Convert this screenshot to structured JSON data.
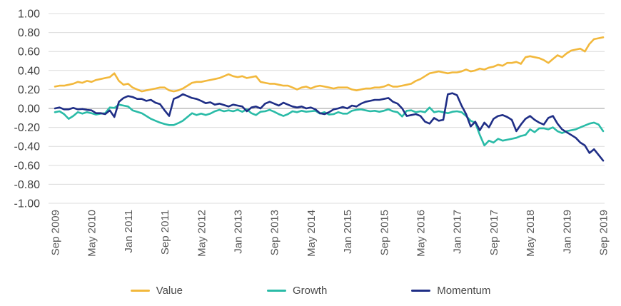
{
  "chart_data": {
    "type": "line",
    "title": "",
    "xlabel": "",
    "ylabel": "",
    "x_start": "Sep 2009",
    "x_end": "Sep 2019",
    "x_frequency": "monthly",
    "x_tick_labels": [
      "Sep 2009",
      "May 2010",
      "Jan 2011",
      "Sep 2011",
      "May 2012",
      "Jan 2013",
      "Sep 2013",
      "May 2014",
      "Jan 2015",
      "Sep 2015",
      "May 2016",
      "Jan 2017",
      "Sep 2017",
      "May 2018",
      "Jan 2019",
      "Sep 2019"
    ],
    "x_tick_interval_months": 8,
    "y_tick_labels": [
      "1.00",
      "0.80",
      "0.60",
      "0.40",
      "0.20",
      "0.00",
      "-0.20",
      "-0.40",
      "-0.60",
      "-0.80",
      "-1.00"
    ],
    "ylim": [
      -1.0,
      1.0
    ],
    "grid": "horizontal",
    "legend_position": "bottom",
    "series": [
      {
        "name": "Value",
        "color": "#F2B83C",
        "values": [
          0.23,
          0.24,
          0.24,
          0.25,
          0.26,
          0.28,
          0.27,
          0.29,
          0.28,
          0.3,
          0.31,
          0.32,
          0.33,
          0.37,
          0.29,
          0.25,
          0.26,
          0.22,
          0.2,
          0.18,
          0.19,
          0.2,
          0.21,
          0.22,
          0.22,
          0.19,
          0.18,
          0.19,
          0.21,
          0.24,
          0.27,
          0.28,
          0.28,
          0.29,
          0.3,
          0.31,
          0.32,
          0.34,
          0.36,
          0.34,
          0.33,
          0.34,
          0.32,
          0.33,
          0.34,
          0.28,
          0.27,
          0.26,
          0.26,
          0.25,
          0.24,
          0.24,
          0.22,
          0.2,
          0.22,
          0.23,
          0.21,
          0.23,
          0.24,
          0.23,
          0.22,
          0.21,
          0.22,
          0.22,
          0.22,
          0.2,
          0.19,
          0.2,
          0.21,
          0.21,
          0.22,
          0.22,
          0.23,
          0.25,
          0.23,
          0.23,
          0.24,
          0.25,
          0.26,
          0.29,
          0.31,
          0.34,
          0.37,
          0.38,
          0.39,
          0.38,
          0.37,
          0.38,
          0.38,
          0.39,
          0.41,
          0.39,
          0.4,
          0.42,
          0.41,
          0.43,
          0.44,
          0.46,
          0.45,
          0.48,
          0.48,
          0.49,
          0.47,
          0.54,
          0.55,
          0.54,
          0.53,
          0.51,
          0.48,
          0.52,
          0.56,
          0.54,
          0.58,
          0.61,
          0.62,
          0.63,
          0.6,
          0.68,
          0.73,
          0.74,
          0.75
        ]
      },
      {
        "name": "Growth",
        "color": "#2ABBA7",
        "values": [
          -0.04,
          -0.03,
          -0.06,
          -0.11,
          -0.08,
          -0.04,
          -0.055,
          -0.04,
          -0.05,
          -0.065,
          -0.055,
          -0.05,
          0.01,
          0.005,
          0.04,
          0.03,
          0.02,
          -0.02,
          -0.035,
          -0.05,
          -0.08,
          -0.11,
          -0.13,
          -0.15,
          -0.165,
          -0.175,
          -0.175,
          -0.155,
          -0.13,
          -0.09,
          -0.05,
          -0.07,
          -0.055,
          -0.07,
          -0.055,
          -0.03,
          -0.015,
          -0.03,
          -0.02,
          -0.03,
          -0.015,
          -0.035,
          -0.01,
          -0.05,
          -0.07,
          -0.035,
          -0.03,
          -0.015,
          -0.035,
          -0.06,
          -0.08,
          -0.06,
          -0.03,
          -0.04,
          -0.025,
          -0.035,
          -0.03,
          -0.025,
          -0.055,
          -0.04,
          -0.065,
          -0.06,
          -0.04,
          -0.055,
          -0.055,
          -0.025,
          -0.015,
          -0.01,
          -0.02,
          -0.03,
          -0.025,
          -0.035,
          -0.025,
          -0.01,
          -0.03,
          -0.04,
          -0.085,
          -0.025,
          -0.02,
          -0.04,
          -0.03,
          -0.04,
          0.01,
          -0.04,
          -0.03,
          -0.04,
          -0.05,
          -0.035,
          -0.03,
          -0.04,
          -0.08,
          -0.13,
          -0.15,
          -0.28,
          -0.39,
          -0.34,
          -0.36,
          -0.32,
          -0.34,
          -0.33,
          -0.32,
          -0.31,
          -0.29,
          -0.28,
          -0.22,
          -0.25,
          -0.21,
          -0.21,
          -0.22,
          -0.2,
          -0.24,
          -0.26,
          -0.24,
          -0.23,
          -0.22,
          -0.2,
          -0.18,
          -0.16,
          -0.15,
          -0.17,
          -0.24
        ]
      },
      {
        "name": "Momentum",
        "color": "#1F2E86",
        "values": [
          0.0,
          0.01,
          -0.01,
          -0.01,
          0.005,
          -0.01,
          -0.005,
          -0.015,
          -0.02,
          -0.05,
          -0.05,
          -0.06,
          -0.02,
          -0.09,
          0.07,
          0.11,
          0.13,
          0.12,
          0.1,
          0.1,
          0.08,
          0.09,
          0.06,
          0.045,
          -0.02,
          -0.08,
          0.1,
          0.12,
          0.15,
          0.13,
          0.11,
          0.1,
          0.08,
          0.055,
          0.065,
          0.04,
          0.05,
          0.035,
          0.02,
          0.04,
          0.03,
          0.02,
          -0.03,
          0.01,
          0.02,
          0.0,
          0.05,
          0.07,
          0.05,
          0.03,
          0.06,
          0.04,
          0.02,
          0.01,
          0.02,
          0.0,
          0.01,
          -0.01,
          -0.05,
          -0.06,
          -0.04,
          -0.01,
          0.0,
          0.015,
          0.0,
          0.03,
          0.02,
          0.05,
          0.07,
          0.08,
          0.09,
          0.09,
          0.1,
          0.11,
          0.07,
          0.05,
          0.0,
          -0.08,
          -0.07,
          -0.06,
          -0.08,
          -0.14,
          -0.16,
          -0.1,
          -0.13,
          -0.12,
          0.15,
          0.16,
          0.14,
          0.03,
          -0.06,
          -0.19,
          -0.14,
          -0.23,
          -0.15,
          -0.2,
          -0.11,
          -0.08,
          -0.07,
          -0.09,
          -0.12,
          -0.24,
          -0.17,
          -0.11,
          -0.08,
          -0.12,
          -0.15,
          -0.17,
          -0.1,
          -0.08,
          -0.16,
          -0.22,
          -0.25,
          -0.28,
          -0.31,
          -0.36,
          -0.39,
          -0.47,
          -0.43,
          -0.49,
          -0.55
        ]
      }
    ],
    "colors": {
      "grid_line": "#dcdcdc",
      "zero_line": "#9b9b9b",
      "y_tick_text": "#424242",
      "x_tick_text": "#595959",
      "legend_text": "#4a4a4a",
      "background": "#ffffff"
    }
  }
}
